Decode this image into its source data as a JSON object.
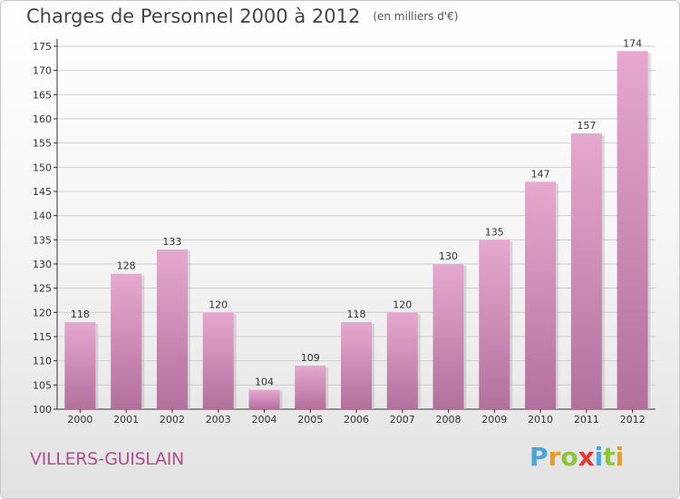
{
  "title": "Charges de Personnel 2000 à 2012",
  "subtitle": "(en milliers d'€)",
  "commune": "VILLERS-GUISLAIN",
  "logo": {
    "text": "Proxiti",
    "letters": [
      {
        "ch": "P",
        "color": "#4aa6d8"
      },
      {
        "ch": "r",
        "color": "#f29a1e"
      },
      {
        "ch": "o",
        "color": "#8cc63f"
      },
      {
        "ch": "x",
        "color": "#e53935"
      },
      {
        "ch": "i",
        "color": "#4aa6d8"
      },
      {
        "ch": "t",
        "color": "#8cc63f"
      },
      {
        "ch": "i",
        "color": "#f29a1e"
      }
    ]
  },
  "colors": {
    "bar_top": "#e6a8cf",
    "bar_bottom": "#b2709c",
    "axis": "#333333",
    "grid": "#d0d0d0"
  },
  "chart_data": {
    "type": "bar",
    "title": "Charges de Personnel 2000 à 2012",
    "subtitle": "(en milliers d'€)",
    "categories": [
      "2000",
      "2001",
      "2002",
      "2003",
      "2004",
      "2005",
      "2006",
      "2007",
      "2008",
      "2009",
      "2010",
      "2011",
      "2012"
    ],
    "values": [
      118,
      128,
      133,
      120,
      104,
      109,
      118,
      120,
      130,
      135,
      147,
      157,
      174
    ],
    "ylim": [
      100,
      175
    ],
    "yticks": [
      100,
      105,
      110,
      115,
      120,
      125,
      130,
      135,
      140,
      145,
      150,
      155,
      160,
      165,
      170,
      175
    ],
    "grid": true,
    "xlabel": "",
    "ylabel": ""
  }
}
